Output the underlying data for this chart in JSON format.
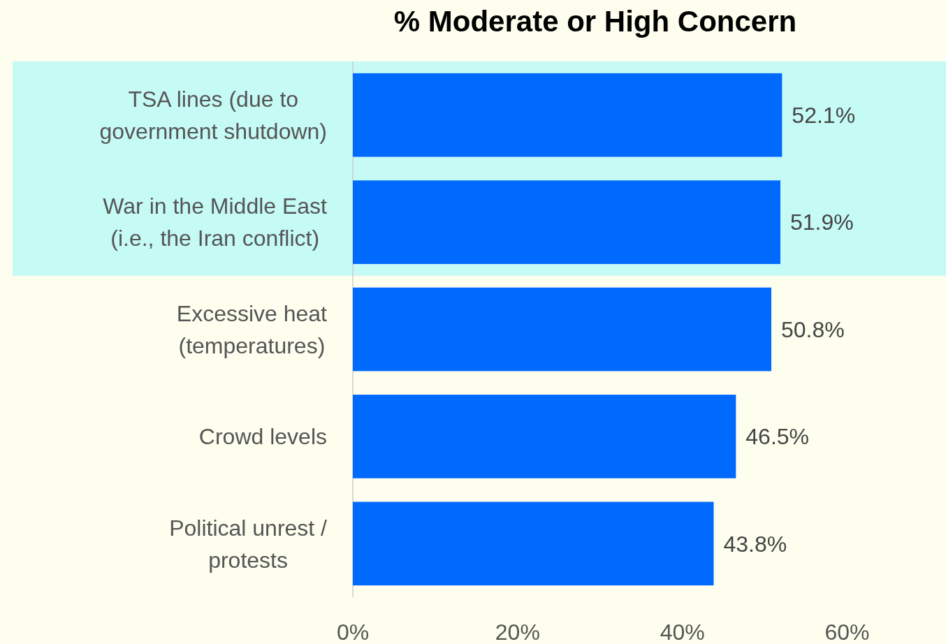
{
  "chart_data": {
    "type": "bar",
    "orientation": "horizontal",
    "title": "% Moderate or High Concern",
    "categories": [
      "TSA lines (due to government shutdown)",
      "War in the Middle East (i.e., the Iran conflict)",
      "Excessive heat (temperatures)",
      "Crowd levels",
      "Political unrest / protests"
    ],
    "values": [
      52.1,
      51.9,
      50.8,
      46.5,
      43.8
    ],
    "color": "#006aff",
    "value_labels": [
      "52.1%",
      "51.9%",
      "50.8%",
      "46.5%",
      "43.8%"
    ],
    "xlim": [
      0,
      72
    ],
    "xticks": [
      {
        "value": 0,
        "label": "0%"
      },
      {
        "value": 20,
        "label": "20%"
      },
      {
        "value": 40,
        "label": "40%"
      },
      {
        "value": 60,
        "label": "60%"
      }
    ],
    "bands": [
      {
        "axis": "y",
        "from": "TSA lines (due to government shutdown)",
        "to": "War in the Middle East (i.e., the Iran conflict)",
        "color": "#c5faf5"
      }
    ],
    "grid": false
  }
}
